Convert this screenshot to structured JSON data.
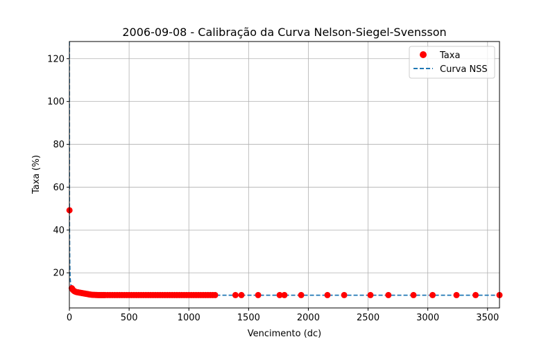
{
  "chart_data": {
    "type": "scatter",
    "title": "2006-09-08 - Calibração da Curva Nelson-Siegel-Svensson",
    "xlabel": "Vencimento (dc)",
    "ylabel": "Taxa (%)",
    "xlim": [
      0,
      3600
    ],
    "ylim": [
      3.6,
      128
    ],
    "xticks": [
      0,
      500,
      1000,
      1500,
      2000,
      2500,
      3000,
      3500
    ],
    "yticks": [
      20,
      40,
      60,
      80,
      100,
      120
    ],
    "grid": true,
    "legend_position": "top-right",
    "series": [
      {
        "name": "Taxa",
        "kind": "scatter",
        "color": "#ff0000",
        "x": [
          1,
          20,
          25,
          30,
          40,
          50,
          60,
          70,
          80,
          90,
          100,
          110,
          120,
          130,
          140,
          150,
          160,
          170,
          180,
          190,
          200,
          210,
          220,
          230,
          240,
          250,
          260,
          270,
          280,
          290,
          300,
          320,
          340,
          360,
          380,
          400,
          420,
          440,
          460,
          480,
          500,
          520,
          540,
          560,
          580,
          600,
          620,
          640,
          660,
          680,
          700,
          720,
          740,
          760,
          780,
          800,
          820,
          840,
          860,
          880,
          900,
          920,
          940,
          960,
          980,
          1000,
          1020,
          1040,
          1060,
          1080,
          1100,
          1120,
          1140,
          1160,
          1180,
          1200,
          1220,
          1390,
          1440,
          1580,
          1760,
          1800,
          1940,
          2160,
          2300,
          2520,
          2670,
          2880,
          3040,
          3240,
          3400,
          3600
        ],
        "y": [
          49.2,
          12.8,
          12.4,
          12.0,
          11.5,
          11.2,
          11.0,
          10.9,
          10.8,
          10.7,
          10.6,
          10.5,
          10.4,
          10.3,
          10.2,
          10.1,
          10.0,
          9.9,
          9.8,
          9.75,
          9.7,
          9.7,
          9.65,
          9.65,
          9.6,
          9.6,
          9.6,
          9.6,
          9.6,
          9.6,
          9.6,
          9.6,
          9.6,
          9.6,
          9.6,
          9.6,
          9.6,
          9.6,
          9.6,
          9.6,
          9.6,
          9.6,
          9.6,
          9.6,
          9.6,
          9.6,
          9.6,
          9.6,
          9.6,
          9.6,
          9.6,
          9.6,
          9.6,
          9.6,
          9.6,
          9.6,
          9.6,
          9.6,
          9.6,
          9.6,
          9.6,
          9.6,
          9.6,
          9.6,
          9.6,
          9.6,
          9.6,
          9.6,
          9.6,
          9.6,
          9.6,
          9.6,
          9.6,
          9.6,
          9.6,
          9.6,
          9.6,
          9.6,
          9.6,
          9.6,
          9.6,
          9.6,
          9.6,
          9.6,
          9.6,
          9.6,
          9.6,
          9.6,
          9.6,
          9.6,
          9.6,
          9.6
        ]
      },
      {
        "name": "Curva NSS",
        "kind": "line",
        "style": "dashed",
        "color": "#1f77b4",
        "x": [
          0,
          0.5,
          1,
          3,
          6,
          10,
          20,
          40,
          60,
          80,
          100,
          150,
          200,
          300,
          500,
          1000,
          2000,
          3600
        ],
        "y": [
          128,
          60,
          40,
          25,
          18,
          15,
          13.2,
          11.8,
          11.1,
          10.6,
          10.3,
          9.9,
          9.7,
          9.6,
          9.55,
          9.55,
          9.55,
          9.55
        ]
      }
    ]
  }
}
